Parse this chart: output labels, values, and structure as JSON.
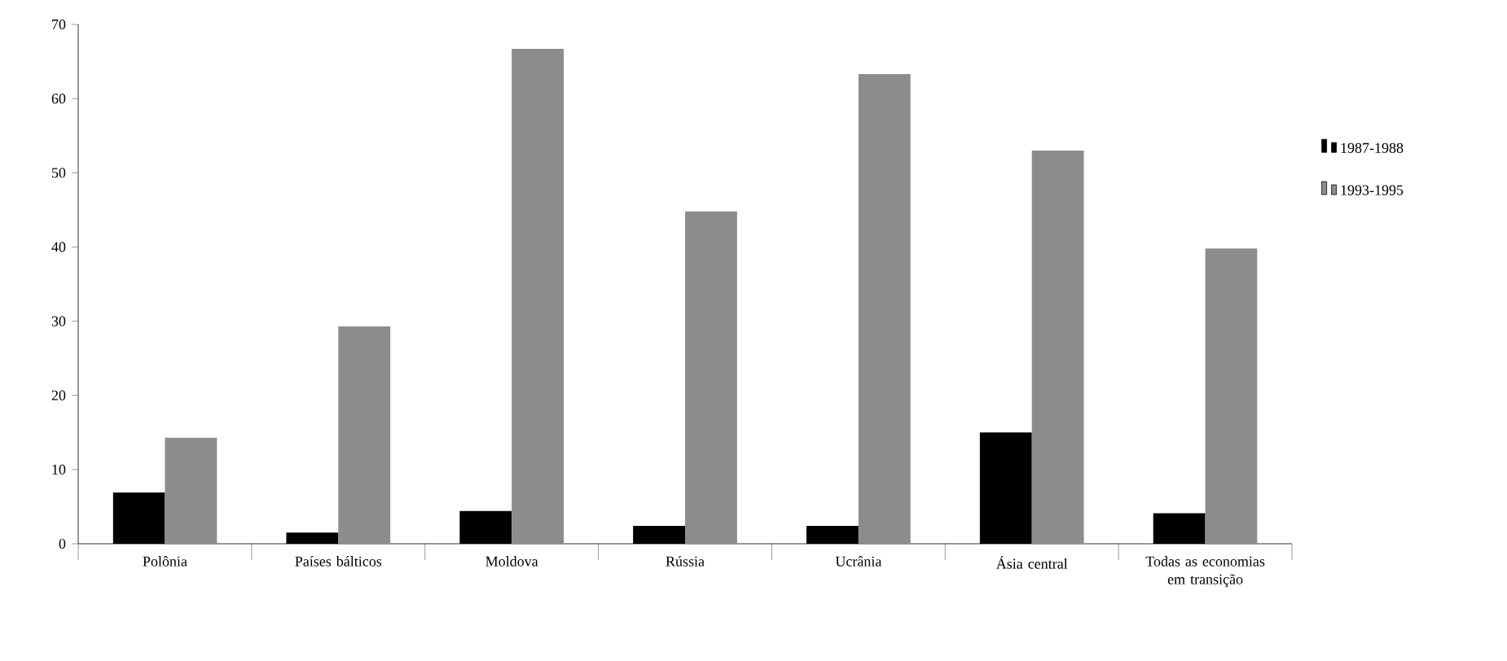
{
  "chart_data": {
    "type": "bar",
    "categories": [
      "Polônia",
      "Países bálticos",
      "Moldova",
      "Rússia",
      "Ucrânia",
      "Ásia central",
      "Todas as economias em transição"
    ],
    "series": [
      {
        "name": "1987-1988",
        "color": "#000000",
        "values": [
          6.9,
          1.5,
          4.4,
          2.4,
          2.4,
          15.0,
          4.1
        ]
      },
      {
        "name": "1993-1995",
        "color": "#8c8c8c",
        "values": [
          14.3,
          29.3,
          66.7,
          44.8,
          63.3,
          53.0,
          39.8
        ]
      }
    ],
    "ylim": [
      0,
      70
    ],
    "yticks": [
      0,
      10,
      20,
      30,
      40,
      50,
      60,
      70
    ],
    "grid": false,
    "legend": "right"
  }
}
